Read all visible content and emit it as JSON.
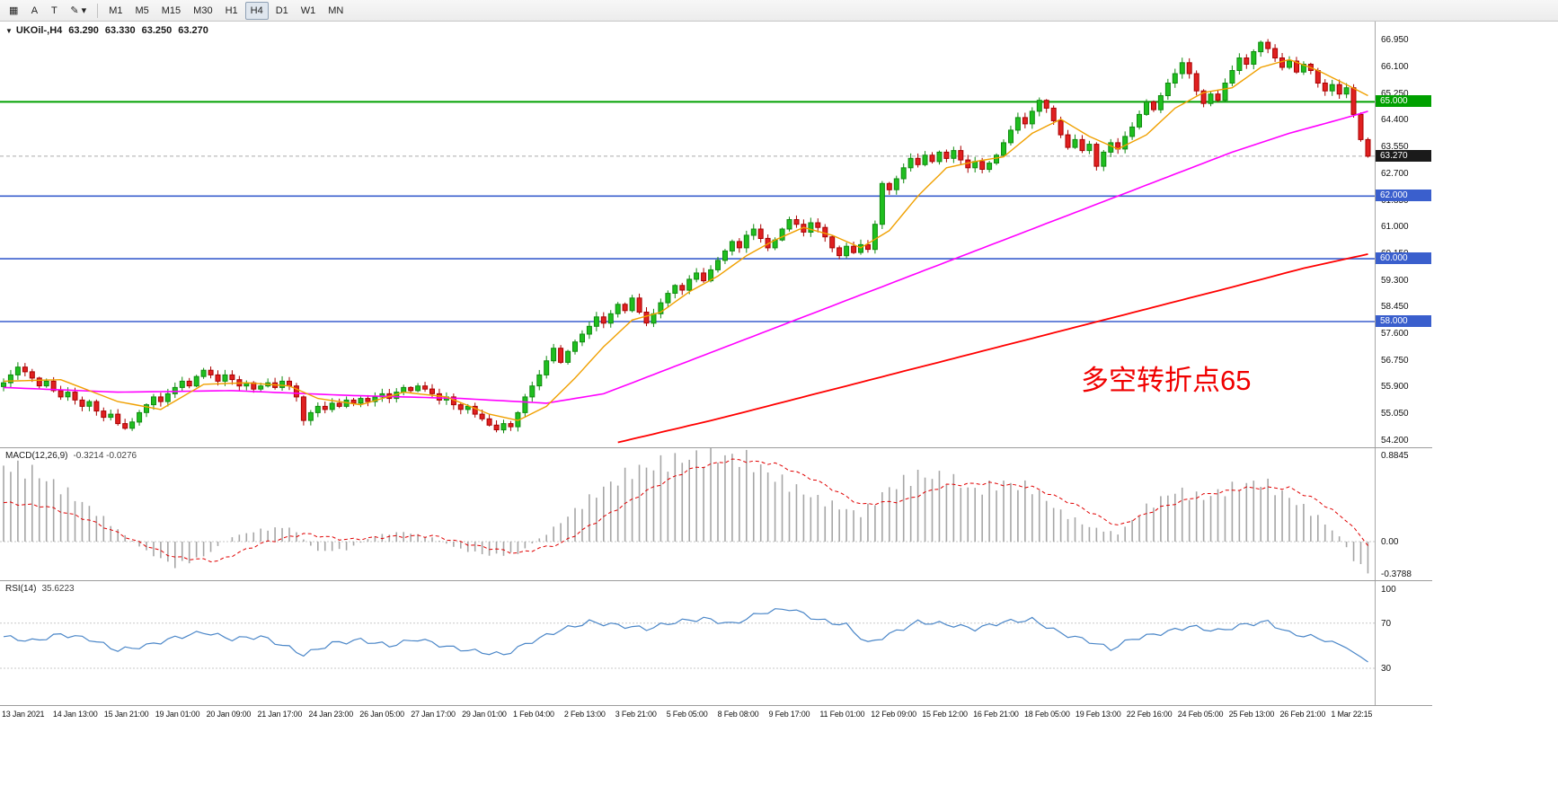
{
  "toolbar": {
    "tools": [
      {
        "name": "windows-grid-icon",
        "glyph": "▦"
      },
      {
        "name": "font-tool",
        "glyph": "A"
      },
      {
        "name": "text-label-tool",
        "glyph": "T"
      },
      {
        "name": "draw-tools",
        "glyph": "✎",
        "caret": "▾"
      }
    ],
    "timeframes": [
      "M1",
      "M5",
      "M15",
      "M30",
      "H1",
      "H4",
      "D1",
      "W1",
      "MN"
    ],
    "active_timeframe": "H4"
  },
  "chart": {
    "header": {
      "arrow": "▼",
      "symbol": "UKOil-,H4",
      "open": "63.290",
      "high": "63.330",
      "low": "63.250",
      "close": "63.270"
    },
    "annotation": {
      "text": "多空转折点65",
      "color": "#f00000"
    },
    "price_axis": [
      "66.950",
      "66.100",
      "65.250",
      "64.400",
      "63.550",
      "62.700",
      "61.850",
      "61.000",
      "60.150",
      "59.300",
      "58.450",
      "57.600",
      "56.750",
      "55.900",
      "55.050",
      "54.200"
    ],
    "hlines": [
      {
        "value": 65.0,
        "label": "65.000",
        "color": "#00a000",
        "style": "solid",
        "width": 2
      },
      {
        "value": 63.27,
        "label": "63.270",
        "color": "#1a1a1a",
        "style": "current",
        "width": 1
      },
      {
        "value": 62.0,
        "label": "62.000",
        "color": "#3a5fcd",
        "style": "solid",
        "width": 1.6
      },
      {
        "value": 60.0,
        "label": "60.000",
        "color": "#3a5fcd",
        "style": "solid",
        "width": 1.6
      },
      {
        "value": 58.0,
        "label": "58.000",
        "color": "#3a5fcd",
        "style": "solid",
        "width": 1.6
      }
    ],
    "colors": {
      "up": "#108a10",
      "up_fill": "#1fbf1f",
      "down": "#a80000",
      "down_fill": "#e02020",
      "ma_fast": "#f0a000",
      "ma_mid": "#ff00ff",
      "ma_slow": "#ff0000",
      "macd_hist": "#a6a6a6",
      "macd_signal": "#e00000",
      "rsi": "#4a86c8",
      "current_line": "#aaaaaa"
    }
  },
  "macd": {
    "title": "MACD(12,26,9)",
    "values": "-0.3214 -0.0276",
    "axis_labels": [
      "0.8845",
      "0.00",
      "-0.3788"
    ]
  },
  "rsi": {
    "title": "RSI(14)",
    "value": "35.6223",
    "axis_labels": [
      "100",
      "70",
      "30"
    ]
  },
  "time_axis": [
    "13 Jan 2021",
    "14 Jan 13:00",
    "15 Jan 21:00",
    "19 Jan 01:00",
    "20 Jan 09:00",
    "21 Jan 17:00",
    "24 Jan 23:00",
    "26 Jan 05:00",
    "27 Jan 17:00",
    "29 Jan 01:00",
    "1 Feb 04:00",
    "2 Feb 13:00",
    "3 Feb 21:00",
    "5 Feb 05:00",
    "8 Feb 08:00",
    "9 Feb 17:00",
    "11 Feb 01:00",
    "12 Feb 09:00",
    "15 Feb 12:00",
    "16 Feb 21:00",
    "18 Feb 05:00",
    "19 Feb 13:00",
    "22 Feb 16:00",
    "24 Feb 05:00",
    "25 Feb 13:00",
    "26 Feb 21:00",
    "1 Mar 22:15"
  ],
  "chart_data": {
    "type": "candlestick",
    "symbol": "UKOil",
    "timeframe": "H4",
    "ohlc_display": {
      "open": 63.29,
      "high": 63.33,
      "low": 63.25,
      "close": 63.27
    },
    "y_range": [
      54.0,
      67.6
    ],
    "closes": [
      56.05,
      56.3,
      56.55,
      56.4,
      56.2,
      55.95,
      56.1,
      55.8,
      55.6,
      55.75,
      55.5,
      55.3,
      55.45,
      55.15,
      54.95,
      55.05,
      54.75,
      54.6,
      54.8,
      55.1,
      55.35,
      55.6,
      55.45,
      55.7,
      55.9,
      56.1,
      55.95,
      56.25,
      56.45,
      56.3,
      56.1,
      56.3,
      56.15,
      55.95,
      56.05,
      55.85,
      55.95,
      56.05,
      55.9,
      56.1,
      55.95,
      55.6,
      54.85,
      55.1,
      55.3,
      55.2,
      55.4,
      55.3,
      55.5,
      55.4,
      55.55,
      55.45,
      55.6,
      55.7,
      55.55,
      55.75,
      55.9,
      55.8,
      55.95,
      55.85,
      55.7,
      55.5,
      55.6,
      55.35,
      55.2,
      55.3,
      55.05,
      54.9,
      54.7,
      54.55,
      54.75,
      54.65,
      55.1,
      55.6,
      55.95,
      56.3,
      56.75,
      57.15,
      56.7,
      57.05,
      57.35,
      57.6,
      57.85,
      58.15,
      57.95,
      58.25,
      58.55,
      58.35,
      58.75,
      58.3,
      57.95,
      58.25,
      58.6,
      58.9,
      59.15,
      59.0,
      59.35,
      59.55,
      59.3,
      59.65,
      59.95,
      60.25,
      60.55,
      60.35,
      60.75,
      60.95,
      60.65,
      60.35,
      60.6,
      60.95,
      61.25,
      61.1,
      60.85,
      61.15,
      61.0,
      60.7,
      60.35,
      60.1,
      60.4,
      60.2,
      60.45,
      60.3,
      61.1,
      62.4,
      62.2,
      62.55,
      62.9,
      63.2,
      63.0,
      63.3,
      63.1,
      63.4,
      63.2,
      63.45,
      63.15,
      62.9,
      63.1,
      62.85,
      63.05,
      63.3,
      63.7,
      64.1,
      64.5,
      64.3,
      64.7,
      65.05,
      64.8,
      64.4,
      63.95,
      63.55,
      63.8,
      63.45,
      63.65,
      62.95,
      63.4,
      63.7,
      63.5,
      63.9,
      64.2,
      64.6,
      65.0,
      64.75,
      65.2,
      65.6,
      65.9,
      66.25,
      65.9,
      65.35,
      64.95,
      65.25,
      65.05,
      65.6,
      66.0,
      66.4,
      66.2,
      66.6,
      66.9,
      66.7,
      66.4,
      66.1,
      66.3,
      65.95,
      66.2,
      66.0,
      65.6,
      65.35,
      65.55,
      65.25,
      65.45,
      64.6,
      63.8,
      63.27
    ],
    "ma_fast_points": [
      [
        0,
        56.1
      ],
      [
        8,
        56.15
      ],
      [
        16,
        55.45
      ],
      [
        22,
        55.2
      ],
      [
        28,
        56.0
      ],
      [
        34,
        56.05
      ],
      [
        40,
        55.95
      ],
      [
        44,
        55.55
      ],
      [
        50,
        55.35
      ],
      [
        56,
        55.75
      ],
      [
        62,
        55.6
      ],
      [
        68,
        55.05
      ],
      [
        72,
        54.85
      ],
      [
        76,
        55.3
      ],
      [
        80,
        56.2
      ],
      [
        84,
        57.2
      ],
      [
        88,
        58.05
      ],
      [
        92,
        58.3
      ],
      [
        96,
        58.95
      ],
      [
        100,
        59.45
      ],
      [
        104,
        60.1
      ],
      [
        108,
        60.6
      ],
      [
        112,
        61.0
      ],
      [
        116,
        60.75
      ],
      [
        120,
        60.35
      ],
      [
        124,
        60.9
      ],
      [
        128,
        62.0
      ],
      [
        132,
        62.9
      ],
      [
        136,
        63.1
      ],
      [
        140,
        63.25
      ],
      [
        144,
        64.0
      ],
      [
        148,
        64.45
      ],
      [
        152,
        63.9
      ],
      [
        156,
        63.5
      ],
      [
        160,
        63.95
      ],
      [
        164,
        64.8
      ],
      [
        168,
        65.3
      ],
      [
        172,
        65.45
      ],
      [
        176,
        66.1
      ],
      [
        180,
        66.35
      ],
      [
        184,
        66.0
      ],
      [
        188,
        65.55
      ],
      [
        191,
        65.2
      ]
    ],
    "ma_mid_points": [
      [
        0,
        55.9
      ],
      [
        16,
        55.75
      ],
      [
        32,
        55.8
      ],
      [
        48,
        55.65
      ],
      [
        64,
        55.55
      ],
      [
        76,
        55.4
      ],
      [
        84,
        55.7
      ],
      [
        92,
        56.4
      ],
      [
        100,
        57.1
      ],
      [
        108,
        57.8
      ],
      [
        116,
        58.5
      ],
      [
        124,
        59.2
      ],
      [
        132,
        59.9
      ],
      [
        140,
        60.6
      ],
      [
        148,
        61.3
      ],
      [
        156,
        62.0
      ],
      [
        164,
        62.7
      ],
      [
        172,
        63.4
      ],
      [
        180,
        64.0
      ],
      [
        188,
        64.5
      ],
      [
        191,
        64.7
      ]
    ],
    "ma_slow_points": [
      [
        86,
        54.15
      ],
      [
        100,
        54.9
      ],
      [
        112,
        55.6
      ],
      [
        124,
        56.3
      ],
      [
        136,
        57.0
      ],
      [
        148,
        57.7
      ],
      [
        160,
        58.4
      ],
      [
        172,
        59.1
      ],
      [
        182,
        59.7
      ],
      [
        191,
        60.15
      ]
    ],
    "macd": {
      "params": "12,26,9",
      "macd_value": -0.3214,
      "signal_value": -0.0276,
      "range": [
        -0.3788,
        0.8845
      ],
      "hist_points": [
        [
          0,
          0.78
        ],
        [
          4,
          0.72
        ],
        [
          8,
          0.55
        ],
        [
          12,
          0.35
        ],
        [
          16,
          0.12
        ],
        [
          20,
          -0.1
        ],
        [
          24,
          -0.25
        ],
        [
          28,
          -0.15
        ],
        [
          32,
          0.05
        ],
        [
          36,
          0.12
        ],
        [
          40,
          0.15
        ],
        [
          44,
          -0.1
        ],
        [
          48,
          -0.08
        ],
        [
          52,
          0.06
        ],
        [
          56,
          0.1
        ],
        [
          60,
          0.04
        ],
        [
          64,
          -0.08
        ],
        [
          68,
          -0.14
        ],
        [
          72,
          -0.12
        ],
        [
          76,
          0.08
        ],
        [
          80,
          0.32
        ],
        [
          84,
          0.55
        ],
        [
          88,
          0.72
        ],
        [
          92,
          0.8
        ],
        [
          96,
          0.86
        ],
        [
          100,
          0.88
        ],
        [
          104,
          0.84
        ],
        [
          108,
          0.66
        ],
        [
          112,
          0.5
        ],
        [
          116,
          0.38
        ],
        [
          120,
          0.28
        ],
        [
          124,
          0.55
        ],
        [
          128,
          0.68
        ],
        [
          132,
          0.66
        ],
        [
          136,
          0.52
        ],
        [
          140,
          0.6
        ],
        [
          144,
          0.55
        ],
        [
          148,
          0.3
        ],
        [
          152,
          0.15
        ],
        [
          156,
          0.08
        ],
        [
          160,
          0.35
        ],
        [
          164,
          0.52
        ],
        [
          168,
          0.45
        ],
        [
          172,
          0.55
        ],
        [
          176,
          0.62
        ],
        [
          180,
          0.45
        ],
        [
          184,
          0.25
        ],
        [
          187,
          0.05
        ],
        [
          189,
          -0.18
        ],
        [
          191,
          -0.32
        ]
      ],
      "signal_points": [
        [
          0,
          0.4
        ],
        [
          6,
          0.36
        ],
        [
          12,
          0.22
        ],
        [
          18,
          0.02
        ],
        [
          24,
          -0.16
        ],
        [
          30,
          -0.2
        ],
        [
          36,
          -0.02
        ],
        [
          42,
          0.08
        ],
        [
          48,
          0.02
        ],
        [
          54,
          0.05
        ],
        [
          60,
          0.06
        ],
        [
          66,
          -0.04
        ],
        [
          72,
          -0.12
        ],
        [
          78,
          -0.02
        ],
        [
          84,
          0.25
        ],
        [
          90,
          0.52
        ],
        [
          96,
          0.74
        ],
        [
          102,
          0.84
        ],
        [
          108,
          0.8
        ],
        [
          114,
          0.62
        ],
        [
          120,
          0.38
        ],
        [
          126,
          0.42
        ],
        [
          132,
          0.58
        ],
        [
          138,
          0.6
        ],
        [
          144,
          0.56
        ],
        [
          150,
          0.38
        ],
        [
          156,
          0.16
        ],
        [
          162,
          0.35
        ],
        [
          168,
          0.48
        ],
        [
          174,
          0.55
        ],
        [
          180,
          0.55
        ],
        [
          184,
          0.42
        ],
        [
          188,
          0.22
        ],
        [
          191,
          -0.03
        ]
      ]
    },
    "rsi": {
      "period": 14,
      "value": 35.6223,
      "levels": [
        70,
        30
      ],
      "scale": [
        0,
        100
      ],
      "points": [
        [
          0,
          58
        ],
        [
          4,
          54
        ],
        [
          8,
          60
        ],
        [
          12,
          56
        ],
        [
          16,
          46
        ],
        [
          20,
          50
        ],
        [
          24,
          57
        ],
        [
          28,
          62
        ],
        [
          32,
          56
        ],
        [
          36,
          58
        ],
        [
          40,
          48
        ],
        [
          42,
          42
        ],
        [
          46,
          52
        ],
        [
          50,
          55
        ],
        [
          54,
          50
        ],
        [
          58,
          56
        ],
        [
          62,
          49
        ],
        [
          66,
          45
        ],
        [
          70,
          42
        ],
        [
          74,
          54
        ],
        [
          78,
          64
        ],
        [
          82,
          71
        ],
        [
          86,
          68
        ],
        [
          90,
          65
        ],
        [
          94,
          71
        ],
        [
          98,
          74
        ],
        [
          102,
          69
        ],
        [
          106,
          79
        ],
        [
          110,
          83
        ],
        [
          114,
          73
        ],
        [
          118,
          68
        ],
        [
          121,
          52
        ],
        [
          124,
          60
        ],
        [
          128,
          71
        ],
        [
          132,
          69
        ],
        [
          136,
          65
        ],
        [
          140,
          71
        ],
        [
          144,
          73
        ],
        [
          148,
          61
        ],
        [
          152,
          54
        ],
        [
          155,
          47
        ],
        [
          158,
          56
        ],
        [
          162,
          61
        ],
        [
          166,
          67
        ],
        [
          170,
          63
        ],
        [
          174,
          69
        ],
        [
          177,
          71
        ],
        [
          180,
          61
        ],
        [
          183,
          58
        ],
        [
          186,
          54
        ],
        [
          188,
          48
        ],
        [
          190,
          40
        ],
        [
          191,
          35.6
        ]
      ]
    }
  }
}
